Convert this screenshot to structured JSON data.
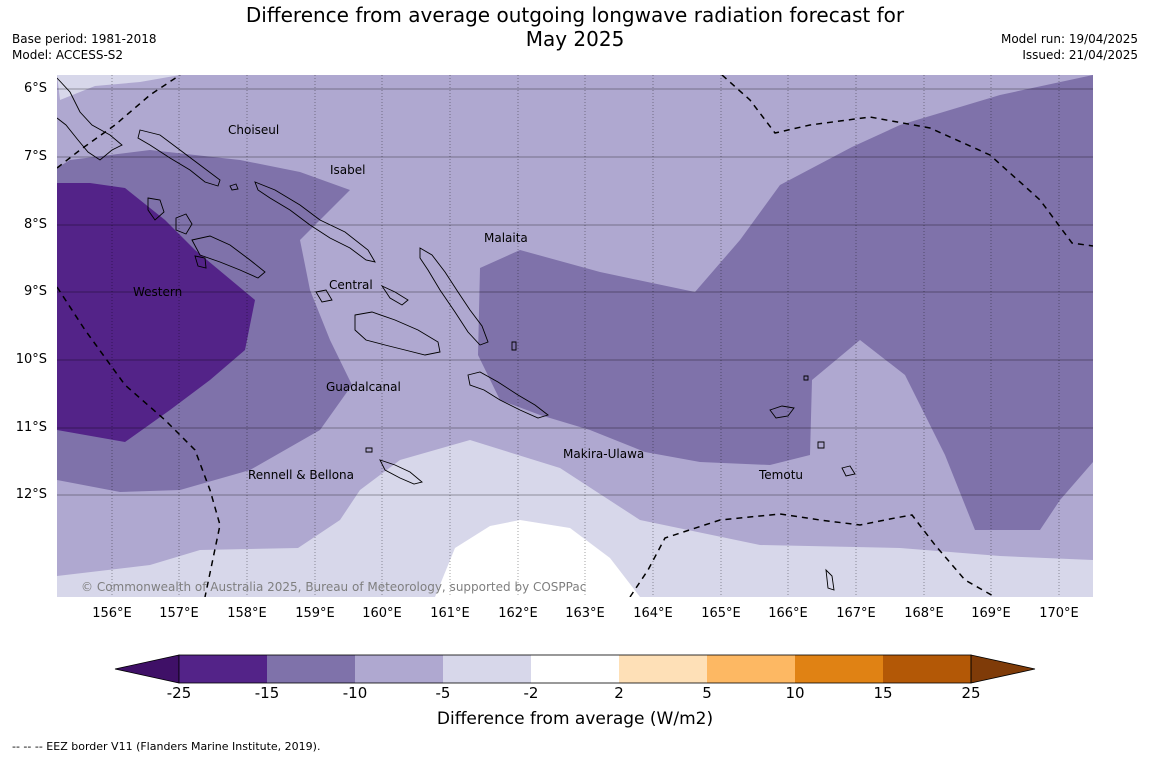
{
  "title_line1": "Difference from average outgoing longwave radiation forecast for",
  "title_line2": "May 2025",
  "base_period": "Base period: 1981-2018",
  "model": "Model: ACCESS-S2",
  "model_run": "Model run: 19/04/2025",
  "issued": "Issued: 21/04/2025",
  "lat_labels": [
    "6°S",
    "7°S",
    "8°S",
    "9°S",
    "10°S",
    "11°S",
    "12°S"
  ],
  "lon_labels": [
    "156°E",
    "157°E",
    "158°E",
    "159°E",
    "160°E",
    "161°E",
    "162°E",
    "163°E",
    "164°E",
    "165°E",
    "166°E",
    "167°E",
    "168°E",
    "169°E",
    "170°E"
  ],
  "places": {
    "choiseul": "Choiseul",
    "isabel": "Isabel",
    "malaita": "Malaita",
    "western": "Western",
    "central": "Central",
    "guadalcanal": "Guadalcanal",
    "makira": "Makira-Ulawa",
    "rennell": "Rennell & Bellona",
    "temotu": "Temotu"
  },
  "copyright": "© Commonwealth of Australia 2025, Bureau of Meteorology, supported by COSPPac",
  "colorbar": {
    "ticks": [
      "-25",
      "-15",
      "-10",
      "-5",
      "-2",
      "2",
      "5",
      "10",
      "15",
      "25"
    ],
    "colors": [
      "#3f1067",
      "#532388",
      "#7f72aa",
      "#afa8d0",
      "#d7d7ea",
      "#ffffff",
      "#fee0b7",
      "#fdb863",
      "#e08214",
      "#b35806",
      "#7f3b08"
    ],
    "label": "Difference from average (W/m2)"
  },
  "eez_note": "--  --  -- EEZ border V11 (Flanders Marine Institute, 2019)."
}
